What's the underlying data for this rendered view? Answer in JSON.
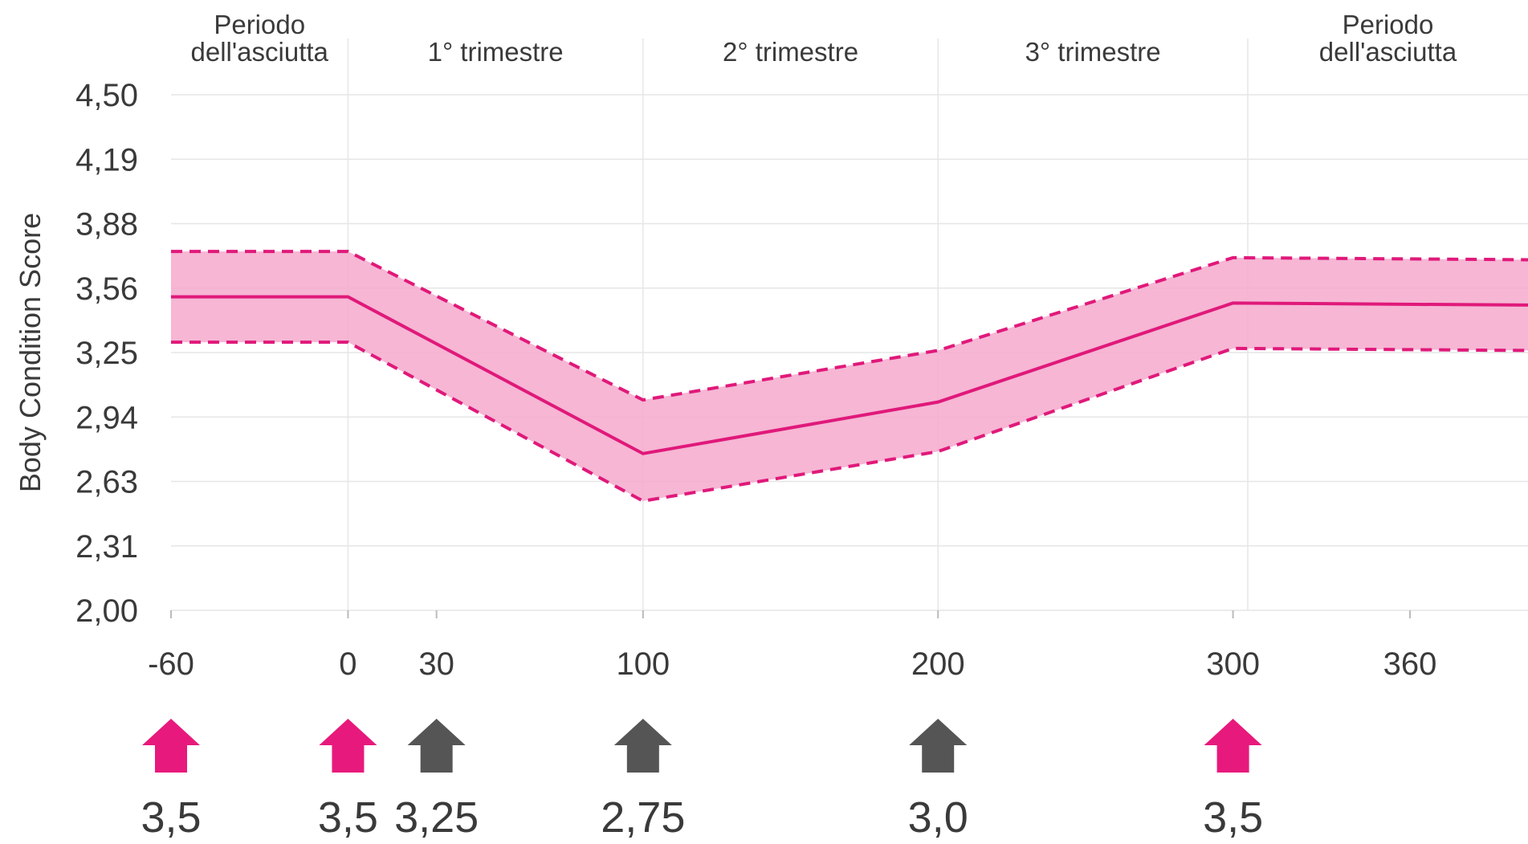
{
  "chart_data": {
    "type": "line",
    "ylabel": "Body Condition Score",
    "xlabel": "",
    "y_ticks": [
      "4,50",
      "4,19",
      "3,88",
      "3,56",
      "3,25",
      "2,94",
      "2,63",
      "2,31",
      "2,00"
    ],
    "ylim": [
      2.0,
      4.5
    ],
    "x_ticks": [
      {
        "value": -60,
        "label": "-60"
      },
      {
        "value": 0,
        "label": "0"
      },
      {
        "value": 30,
        "label": "30"
      },
      {
        "value": 100,
        "label": "100"
      },
      {
        "value": 200,
        "label": "200"
      },
      {
        "value": 300,
        "label": "300"
      },
      {
        "value": 360,
        "label": "360"
      }
    ],
    "xlim": [
      -60,
      400
    ],
    "periods": [
      {
        "label": "Periodo\ndell'asciutta",
        "start": -60,
        "end": 0
      },
      {
        "label": "1° trimestre",
        "start": 0,
        "end": 100
      },
      {
        "label": "2° trimestre",
        "start": 100,
        "end": 200
      },
      {
        "label": "3° trimestre",
        "start": 200,
        "end": 305
      },
      {
        "label": "Periodo\ndell'asciutta",
        "start": 305,
        "end": 400
      }
    ],
    "series": [
      {
        "role": "target",
        "x": [
          -60,
          0,
          100,
          200,
          300,
          400
        ],
        "y": [
          3.52,
          3.52,
          2.76,
          3.01,
          3.49,
          3.48
        ]
      },
      {
        "role": "upper",
        "x": [
          -60,
          0,
          100,
          200,
          300,
          400
        ],
        "y": [
          3.74,
          3.74,
          3.02,
          3.26,
          3.71,
          3.7
        ]
      },
      {
        "role": "lower",
        "x": [
          -60,
          0,
          100,
          200,
          300,
          400
        ],
        "y": [
          3.3,
          3.3,
          2.53,
          2.77,
          3.27,
          3.26
        ]
      }
    ],
    "markers": [
      {
        "x": -60,
        "label": "3,5",
        "color": "#e8197c"
      },
      {
        "x": 0,
        "label": "3,5",
        "color": "#e8197c"
      },
      {
        "x": 30,
        "label": "3,25",
        "color": "#555555"
      },
      {
        "x": 100,
        "label": "2,75",
        "color": "#555555"
      },
      {
        "x": 200,
        "label": "3,0",
        "color": "#555555"
      },
      {
        "x": 300,
        "label": "3,5",
        "color": "#e8197c"
      }
    ],
    "colors": {
      "line": "#e0197a",
      "band": "#f5a9cc",
      "grid": "#e6e6e6",
      "text": "#3a3a3a"
    }
  }
}
